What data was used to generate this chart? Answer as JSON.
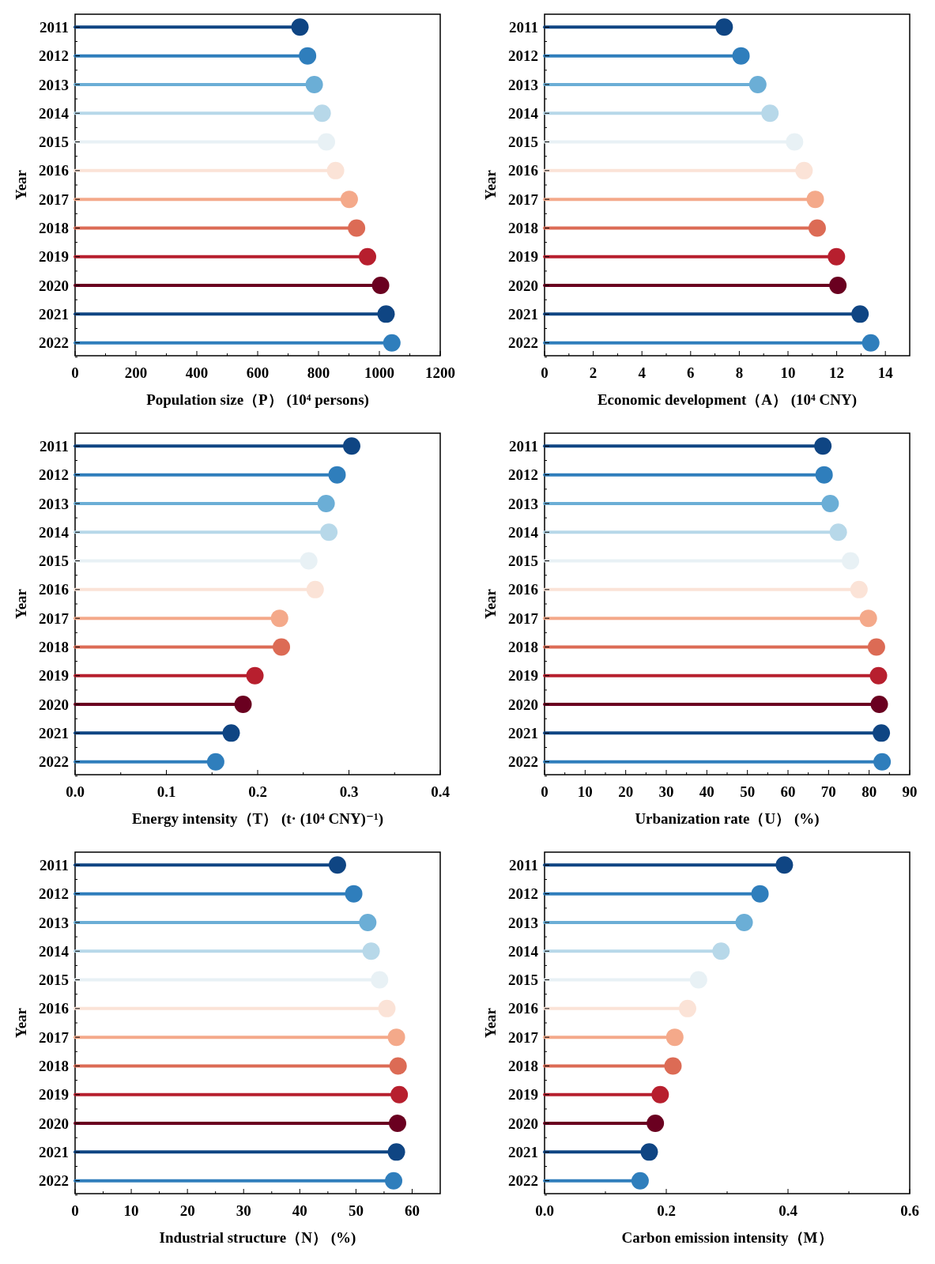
{
  "chart_data": [
    {
      "type": "lollipop",
      "orientation": "horizontal",
      "ylabel": "Year",
      "xlabel": "Population size（P） (10⁴ persons)",
      "categories": [
        "2011",
        "2012",
        "2013",
        "2014",
        "2015",
        "2016",
        "2017",
        "2018",
        "2019",
        "2020",
        "2021",
        "2022"
      ],
      "values": [
        739,
        764,
        786,
        812,
        826,
        856,
        901,
        925,
        961,
        1004,
        1022,
        1041
      ],
      "colors": [
        "#0f4583",
        "#2f7ebc",
        "#6baed6",
        "#b7d8e9",
        "#e8f1f5",
        "#fbe3d7",
        "#f4a98a",
        "#dc6b55",
        "#b71f2e",
        "#6a0020",
        "#0f4583",
        "#2f7ebc"
      ],
      "xlim": [
        0,
        1200
      ],
      "xticks": [
        0,
        {
          "value": 100,
          "label": null
        },
        200,
        {
          "value": 300,
          "label": null
        },
        400,
        {
          "value": 500,
          "label": null
        },
        600,
        {
          "value": 700,
          "label": null
        },
        800,
        {
          "value": 900,
          "label": null
        },
        1000,
        {
          "value": 1100,
          "label": null
        },
        1200
      ]
    },
    {
      "type": "lollipop",
      "orientation": "horizontal",
      "ylabel": "Year",
      "xlabel": "Economic development（A） (10⁴ CNY)",
      "categories": [
        "2011",
        "2012",
        "2013",
        "2014",
        "2015",
        "2016",
        "2017",
        "2018",
        "2019",
        "2020",
        "2021",
        "2022"
      ],
      "values": [
        7.38,
        8.07,
        8.76,
        9.26,
        10.27,
        10.66,
        11.12,
        11.2,
        11.99,
        12.05,
        12.96,
        13.4
      ],
      "colors": [
        "#0f4583",
        "#2f7ebc",
        "#6baed6",
        "#b7d8e9",
        "#e8f1f5",
        "#fbe3d7",
        "#f4a98a",
        "#dc6b55",
        "#b71f2e",
        "#6a0020",
        "#0f4583",
        "#2f7ebc"
      ],
      "xlim": [
        0,
        15
      ],
      "xticks": [
        0,
        {
          "value": 1,
          "label": null
        },
        2,
        {
          "value": 3,
          "label": null
        },
        4,
        {
          "value": 5,
          "label": null
        },
        6,
        {
          "value": 7,
          "label": null
        },
        8,
        {
          "value": 9,
          "label": null
        },
        10,
        {
          "value": 11,
          "label": null
        },
        12,
        {
          "value": 13,
          "label": null
        },
        14
      ]
    },
    {
      "type": "lollipop",
      "orientation": "horizontal",
      "ylabel": "Year",
      "xlabel": "Energy intensity（T） (t· (10⁴ CNY)⁻¹)",
      "categories": [
        "2011",
        "2012",
        "2013",
        "2014",
        "2015",
        "2016",
        "2017",
        "2018",
        "2019",
        "2020",
        "2021",
        "2022"
      ],
      "values": [
        0.303,
        0.287,
        0.275,
        0.278,
        0.256,
        0.263,
        0.224,
        0.226,
        0.197,
        0.184,
        0.171,
        0.154
      ],
      "colors": [
        "#0f4583",
        "#2f7ebc",
        "#6baed6",
        "#b7d8e9",
        "#e8f1f5",
        "#fbe3d7",
        "#f4a98a",
        "#dc6b55",
        "#b71f2e",
        "#6a0020",
        "#0f4583",
        "#2f7ebc"
      ],
      "xlim": [
        0,
        0.4
      ],
      "xticks": [
        {
          "value": 0,
          "label": "0.0"
        },
        {
          "value": 0.05,
          "label": null
        },
        0.1,
        {
          "value": 0.15,
          "label": null
        },
        0.2,
        {
          "value": 0.25,
          "label": null
        },
        0.3,
        {
          "value": 0.35,
          "label": null
        },
        0.4
      ]
    },
    {
      "type": "lollipop",
      "orientation": "horizontal",
      "ylabel": "Year",
      "xlabel": "Urbanization rate（U） (%)",
      "categories": [
        "2011",
        "2012",
        "2013",
        "2014",
        "2015",
        "2016",
        "2017",
        "2018",
        "2019",
        "2020",
        "2021",
        "2022"
      ],
      "values": [
        68.6,
        68.9,
        70.4,
        72.4,
        75.4,
        77.5,
        79.8,
        81.8,
        82.3,
        82.5,
        83.0,
        83.2
      ],
      "colors": [
        "#0f4583",
        "#2f7ebc",
        "#6baed6",
        "#b7d8e9",
        "#e8f1f5",
        "#fbe3d7",
        "#f4a98a",
        "#dc6b55",
        "#b71f2e",
        "#6a0020",
        "#0f4583",
        "#2f7ebc"
      ],
      "xlim": [
        0,
        90
      ],
      "xticks": [
        0,
        {
          "value": 5,
          "label": null
        },
        10,
        {
          "value": 15,
          "label": null
        },
        20,
        {
          "value": 25,
          "label": null
        },
        30,
        {
          "value": 35,
          "label": null
        },
        40,
        {
          "value": 45,
          "label": null
        },
        50,
        {
          "value": 55,
          "label": null
        },
        60,
        {
          "value": 65,
          "label": null
        },
        70,
        {
          "value": 75,
          "label": null
        },
        80,
        {
          "value": 85,
          "label": null
        },
        90
      ]
    },
    {
      "type": "lollipop",
      "orientation": "horizontal",
      "ylabel": "Year",
      "xlabel": "Industrial structure（N） (%)",
      "categories": [
        "2011",
        "2012",
        "2013",
        "2014",
        "2015",
        "2016",
        "2017",
        "2018",
        "2019",
        "2020",
        "2021",
        "2022"
      ],
      "values": [
        46.7,
        49.6,
        52.1,
        52.7,
        54.2,
        55.5,
        57.2,
        57.5,
        57.7,
        57.4,
        57.2,
        56.7
      ],
      "colors": [
        "#0f4583",
        "#2f7ebc",
        "#6baed6",
        "#b7d8e9",
        "#e8f1f5",
        "#fbe3d7",
        "#f4a98a",
        "#dc6b55",
        "#b71f2e",
        "#6a0020",
        "#0f4583",
        "#2f7ebc"
      ],
      "xlim": [
        0,
        65
      ],
      "xticks": [
        0,
        {
          "value": 5,
          "label": null
        },
        10,
        {
          "value": 15,
          "label": null
        },
        20,
        {
          "value": 25,
          "label": null
        },
        30,
        {
          "value": 35,
          "label": null
        },
        40,
        {
          "value": 45,
          "label": null
        },
        50,
        {
          "value": 55,
          "label": null
        },
        60
      ]
    },
    {
      "type": "lollipop",
      "orientation": "horizontal",
      "ylabel": "Year",
      "xlabel": "Carbon emission intensity（M）",
      "categories": [
        "2011",
        "2012",
        "2013",
        "2014",
        "2015",
        "2016",
        "2017",
        "2018",
        "2019",
        "2020",
        "2021",
        "2022"
      ],
      "values": [
        0.394,
        0.354,
        0.328,
        0.29,
        0.253,
        0.235,
        0.214,
        0.211,
        0.19,
        0.182,
        0.172,
        0.157
      ],
      "colors": [
        "#0f4583",
        "#2f7ebc",
        "#6baed6",
        "#b7d8e9",
        "#e8f1f5",
        "#fbe3d7",
        "#f4a98a",
        "#dc6b55",
        "#b71f2e",
        "#6a0020",
        "#0f4583",
        "#2f7ebc"
      ],
      "xlim": [
        0,
        0.6
      ],
      "xticks": [
        {
          "value": 0,
          "label": "0.0"
        },
        {
          "value": 0.1,
          "label": null
        },
        0.2,
        {
          "value": 0.3,
          "label": null
        },
        0.4,
        {
          "value": 0.5,
          "label": null
        },
        {
          "value": 0.6,
          "label": "0.6"
        }
      ]
    }
  ]
}
